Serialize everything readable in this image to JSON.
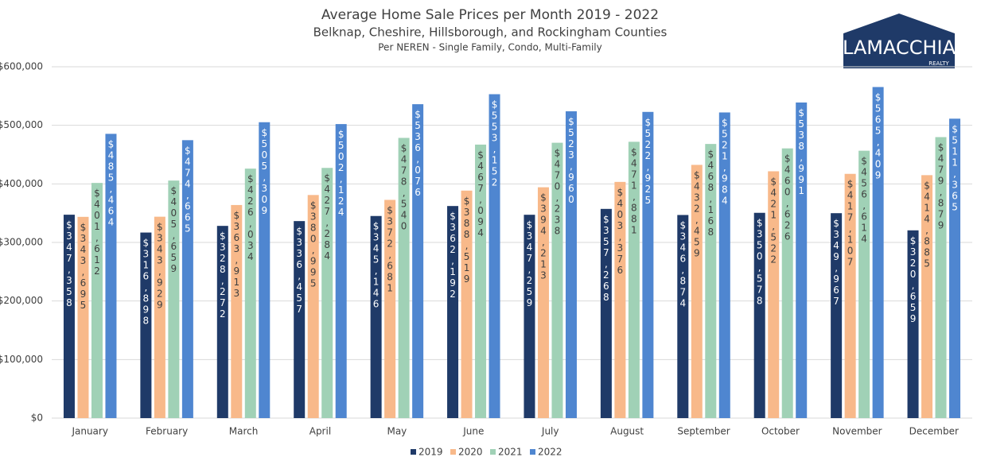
{
  "chart_data": {
    "type": "bar",
    "title": "Average Home Sale Prices per Month 2019 - 2022",
    "subtitle": "Belknap, Cheshire, Hillsborough, and Rockingham Counties",
    "note": "Per NEREN - Single Family, Condo, Multi-Family",
    "logo": {
      "name": "LAMACCHIA",
      "sub": "REALTY"
    },
    "categories": [
      "January",
      "February",
      "March",
      "April",
      "May",
      "June",
      "July",
      "August",
      "September",
      "October",
      "November",
      "December"
    ],
    "series": [
      {
        "name": "2019",
        "color": "#1f3a68",
        "values": [
          347358,
          316898,
          328272,
          336457,
          345146,
          362192,
          347259,
          357268,
          346874,
          350578,
          349967,
          320659
        ],
        "value_labels": [
          "$347,358",
          "$316,898",
          "$328,272",
          "$336,457",
          "$345,146",
          "$362,192",
          "$347,259",
          "$357,268",
          "$346,874",
          "$350,578",
          "$349,967",
          "$320,659"
        ]
      },
      {
        "name": "2020",
        "color": "#f8b98a",
        "values": [
          343695,
          343929,
          363913,
          380995,
          372681,
          388519,
          394213,
          403376,
          432459,
          421522,
          417107,
          414885
        ],
        "value_labels": [
          "$343,695",
          "$343,929",
          "$363,913",
          "$380,995",
          "$372,681",
          "$388,519",
          "$394,213",
          "$403,376",
          "$432,459",
          "$421,522",
          "$417,107",
          "$414,885"
        ]
      },
      {
        "name": "2021",
        "color": "#a0d1b6",
        "values": [
          401612,
          405659,
          426034,
          427284,
          478540,
          467094,
          470238,
          471881,
          468168,
          460626,
          456614,
          479879
        ],
        "value_labels": [
          "$401,612",
          "$405,659",
          "$426,034",
          "$427,284",
          "$478,540",
          "$467,094",
          "$470,238",
          "$471,881",
          "$468,168",
          "$460,626",
          "$456,614",
          "$479,879"
        ]
      },
      {
        "name": "2022",
        "color": "#4f86d0",
        "values": [
          485464,
          474665,
          505309,
          502124,
          536076,
          553152,
          523960,
          522925,
          521984,
          538991,
          565409,
          511365
        ],
        "value_labels": [
          "$485,464",
          "$474,665",
          "$505,309",
          "$502,124",
          "$536,076",
          "$553,152",
          "$523,960",
          "$522,925",
          "$521,984",
          "$538,991",
          "$565,409",
          "$511,365"
        ]
      }
    ],
    "ylim": [
      0,
      600000
    ],
    "yticks": [
      {
        "value": 0,
        "label": "$0"
      },
      {
        "value": 100000,
        "label": "$100,000"
      },
      {
        "value": 200000,
        "label": "$200,000"
      },
      {
        "value": 300000,
        "label": "$300,000"
      },
      {
        "value": 400000,
        "label": "$400,000"
      },
      {
        "value": 500000,
        "label": "$500,000"
      },
      {
        "value": 600000,
        "label": "$600,000"
      }
    ],
    "grid": true,
    "legend": "bottom"
  }
}
